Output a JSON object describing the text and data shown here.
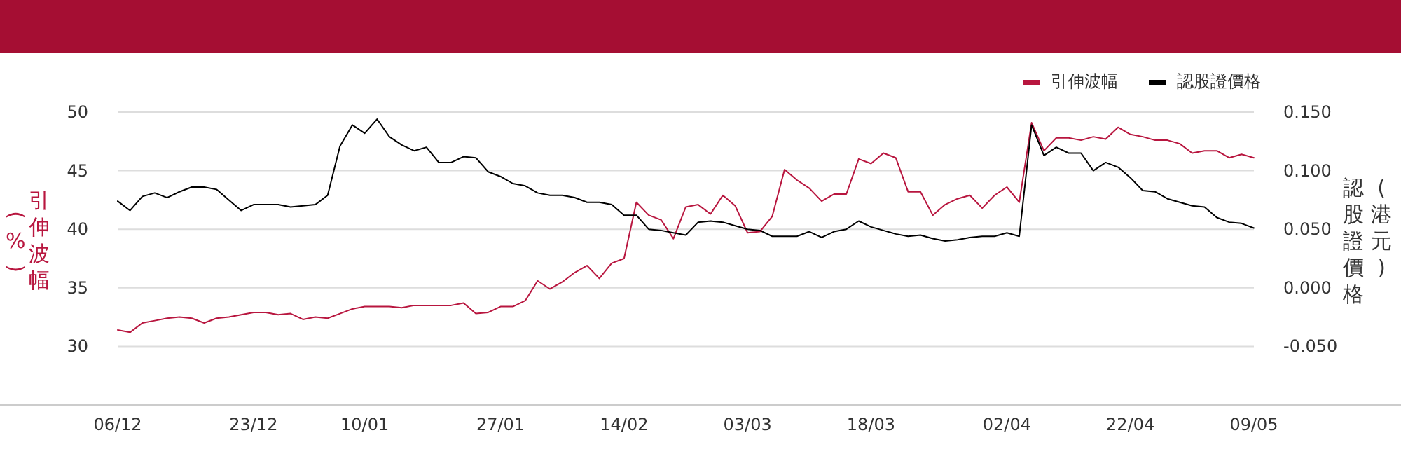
{
  "chart_data": {
    "type": "line",
    "ylabel": "引伸波幅 (%)",
    "y2label": "認股證價格 (港元)",
    "categories": [
      "06/12",
      null,
      null,
      null,
      null,
      null,
      null,
      null,
      null,
      null,
      null,
      "23/12",
      null,
      null,
      null,
      null,
      null,
      null,
      null,
      null,
      "10/01",
      null,
      null,
      null,
      null,
      null,
      null,
      null,
      null,
      null,
      null,
      "27/01",
      null,
      null,
      null,
      null,
      null,
      null,
      null,
      null,
      null,
      "14/02",
      null,
      null,
      null,
      null,
      null,
      null,
      null,
      null,
      null,
      "03/03",
      null,
      null,
      null,
      null,
      null,
      null,
      null,
      null,
      null,
      "18/03",
      null,
      null,
      null,
      null,
      null,
      null,
      null,
      null,
      null,
      null,
      "02/04",
      null,
      null,
      null,
      null,
      null,
      null,
      null,
      null,
      null,
      "22/04",
      null,
      null,
      null,
      null,
      null,
      null,
      null,
      null,
      null,
      "09/05"
    ],
    "series": [
      {
        "name": "引伸波幅",
        "color": "#b8163f",
        "values": [
          31.4,
          31.2,
          32.0,
          32.2,
          32.4,
          32.5,
          32.4,
          32.0,
          32.4,
          32.5,
          32.7,
          32.9,
          32.9,
          32.7,
          32.8,
          32.3,
          32.5,
          32.4,
          32.8,
          33.2,
          33.4,
          33.4,
          33.4,
          33.3,
          33.5,
          33.5,
          33.5,
          33.5,
          33.7,
          32.8,
          32.9,
          33.4,
          33.4,
          33.9,
          35.6,
          34.9,
          35.5,
          36.3,
          36.9,
          35.8,
          37.1,
          37.5,
          42.3,
          41.2,
          40.8,
          39.2,
          41.9,
          42.1,
          41.3,
          42.9,
          42.0,
          39.7,
          39.8,
          41.1,
          45.1,
          44.2,
          43.5,
          42.4,
          43.0,
          43.0,
          46.0,
          45.6,
          46.5,
          46.1,
          43.2,
          43.2,
          41.2,
          42.1,
          42.6,
          42.9,
          41.8,
          42.9,
          43.6,
          42.3,
          49.1,
          46.7,
          47.8,
          47.8,
          47.6,
          47.9,
          47.7,
          48.7,
          48.1,
          47.9,
          47.6,
          47.6,
          47.3,
          46.5,
          46.7,
          46.7,
          46.1,
          46.4,
          46.1
        ]
      },
      {
        "name": "認股證價格",
        "color": "#000000",
        "axis": "y2",
        "values": [
          0.074,
          0.066,
          0.078,
          0.081,
          0.077,
          0.082,
          0.086,
          0.086,
          0.084,
          0.075,
          0.066,
          0.071,
          0.071,
          0.071,
          0.069,
          0.07,
          0.071,
          0.079,
          0.121,
          0.139,
          0.132,
          0.144,
          0.129,
          0.122,
          0.117,
          0.12,
          0.107,
          0.107,
          0.112,
          0.111,
          0.099,
          0.095,
          0.089,
          0.087,
          0.081,
          0.079,
          0.079,
          0.077,
          0.073,
          0.073,
          0.071,
          0.062,
          0.062,
          0.05,
          0.049,
          0.047,
          0.045,
          0.056,
          0.057,
          0.056,
          0.053,
          0.05,
          0.049,
          0.044,
          0.044,
          0.044,
          0.048,
          0.043,
          0.048,
          0.05,
          0.057,
          0.052,
          0.049,
          0.046,
          0.044,
          0.045,
          0.042,
          0.04,
          0.041,
          0.043,
          0.044,
          0.044,
          0.047,
          0.044,
          0.139,
          0.113,
          0.12,
          0.115,
          0.115,
          0.1,
          0.107,
          0.103,
          0.094,
          0.083,
          0.082,
          0.076,
          0.073,
          0.07,
          0.069,
          0.06,
          0.056,
          0.055,
          0.051
        ]
      }
    ],
    "ylim": [
      25,
      50
    ],
    "yticks": [
      30,
      35,
      40,
      45,
      50
    ],
    "y2lim": [
      -0.1,
      0.15
    ],
    "y2ticks": [
      {
        "value": -0.05,
        "label": "-0.050"
      },
      {
        "value": 0,
        "label": "0.000"
      },
      {
        "value": 0.05,
        "label": "0.050"
      },
      {
        "value": 0.1,
        "label": "0.100"
      },
      {
        "value": 0.15,
        "label": "0.150"
      }
    ],
    "grid": "y",
    "legend": "top right"
  }
}
